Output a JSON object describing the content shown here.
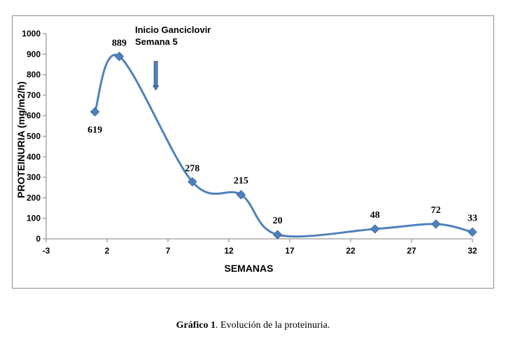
{
  "chart_data": {
    "type": "line",
    "xlabel": "SEMANAS",
    "ylabel": "PROTEINURIA (mg/m2/h)",
    "xlim": [
      -3,
      32
    ],
    "ylim": [
      0,
      1000
    ],
    "x_ticks": [
      -3,
      2,
      7,
      12,
      17,
      22,
      27,
      32
    ],
    "y_ticks": [
      0,
      100,
      200,
      300,
      400,
      500,
      600,
      700,
      800,
      900,
      1000
    ],
    "grid": false,
    "smooth": true,
    "line_color": "#4f81bd",
    "marker": "diamond",
    "series": [
      {
        "points": [
          {
            "x": 1,
            "y": 619,
            "label": "619"
          },
          {
            "x": 3,
            "y": 889,
            "label": "889"
          },
          {
            "x": 9,
            "y": 278,
            "label": "278"
          },
          {
            "x": 13,
            "y": 215,
            "label": "215"
          },
          {
            "x": 16,
            "y": 20,
            "label": "20"
          },
          {
            "x": 24,
            "y": 48,
            "label": "48"
          },
          {
            "x": 29,
            "y": 72,
            "label": "72"
          },
          {
            "x": 32,
            "y": 33,
            "label": "33"
          }
        ]
      }
    ],
    "annotation": {
      "lines": [
        "Inicio Ganciclovir",
        "Semana 5"
      ],
      "arrow_x": 6,
      "arrow_from_y": 865,
      "arrow_to_y": 725,
      "arrow_color": "#4f81bd"
    }
  },
  "caption": {
    "bold": "Gráfico 1",
    "text": ". Evolución de la proteinuria."
  }
}
